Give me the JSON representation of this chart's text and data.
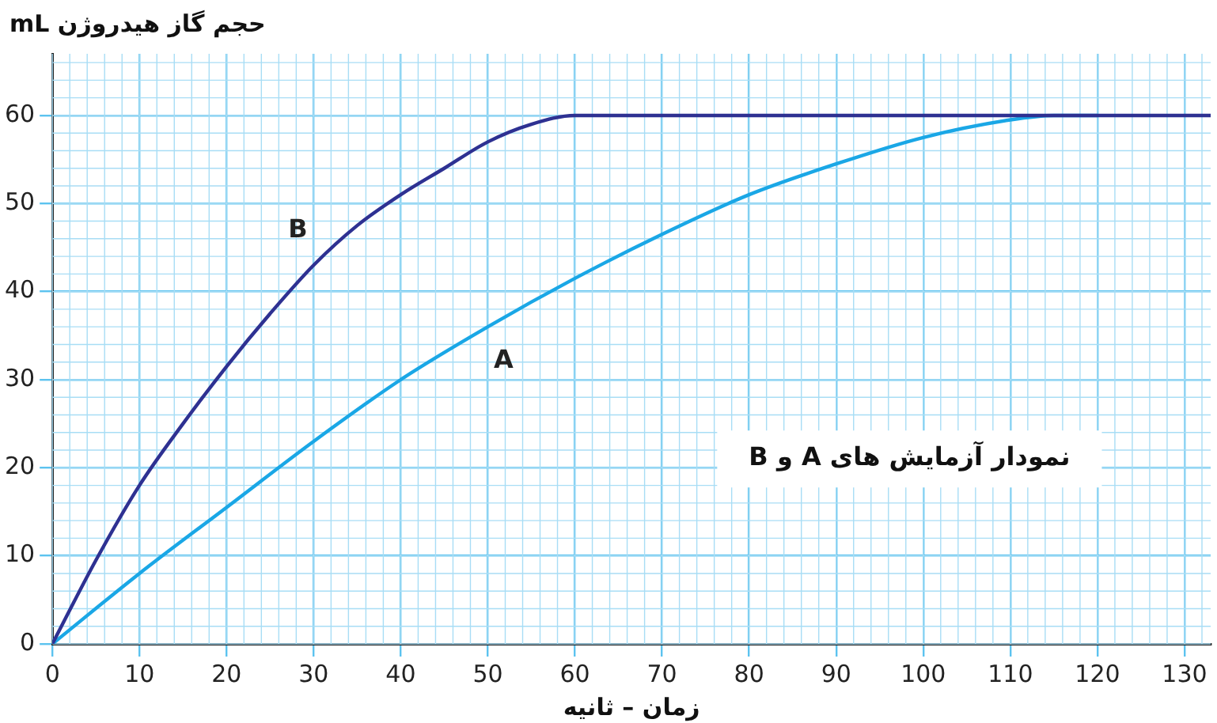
{
  "chart_data": {
    "type": "line",
    "xlabel": "زمان – ثانیه",
    "ylabel": "حجم گاز هیدروژن mL",
    "annotations": [
      "نمودار آزمایش های A و B"
    ],
    "series": [
      {
        "name": "B",
        "color": "#2e3192",
        "x": [
          0,
          5,
          10,
          15,
          20,
          25,
          30,
          35,
          40,
          45,
          50,
          55,
          60,
          70,
          80,
          90,
          100,
          110,
          120,
          133
        ],
        "values": [
          0,
          9.5,
          18,
          25,
          31.5,
          37.5,
          43,
          47.5,
          51,
          54,
          57,
          59,
          60,
          60,
          60,
          60,
          60,
          60,
          60,
          60
        ]
      },
      {
        "name": "A",
        "color": "#1aa7e6",
        "x": [
          0,
          10,
          20,
          30,
          40,
          50,
          60,
          70,
          80,
          90,
          100,
          110,
          115,
          120
        ],
        "values": [
          0,
          8,
          15.5,
          23,
          30,
          36,
          41.5,
          46.5,
          51,
          54.5,
          57.5,
          59.5,
          60,
          60
        ]
      }
    ],
    "xlim": [
      0,
      133
    ],
    "ylim": [
      0,
      67
    ],
    "xticks": [
      0,
      10,
      20,
      30,
      40,
      50,
      60,
      70,
      80,
      90,
      100,
      110,
      120,
      130
    ],
    "yticks": [
      0,
      10,
      20,
      30,
      40,
      50,
      60
    ],
    "grid": true,
    "marker": "none",
    "line_style": "solid",
    "legend": false
  }
}
